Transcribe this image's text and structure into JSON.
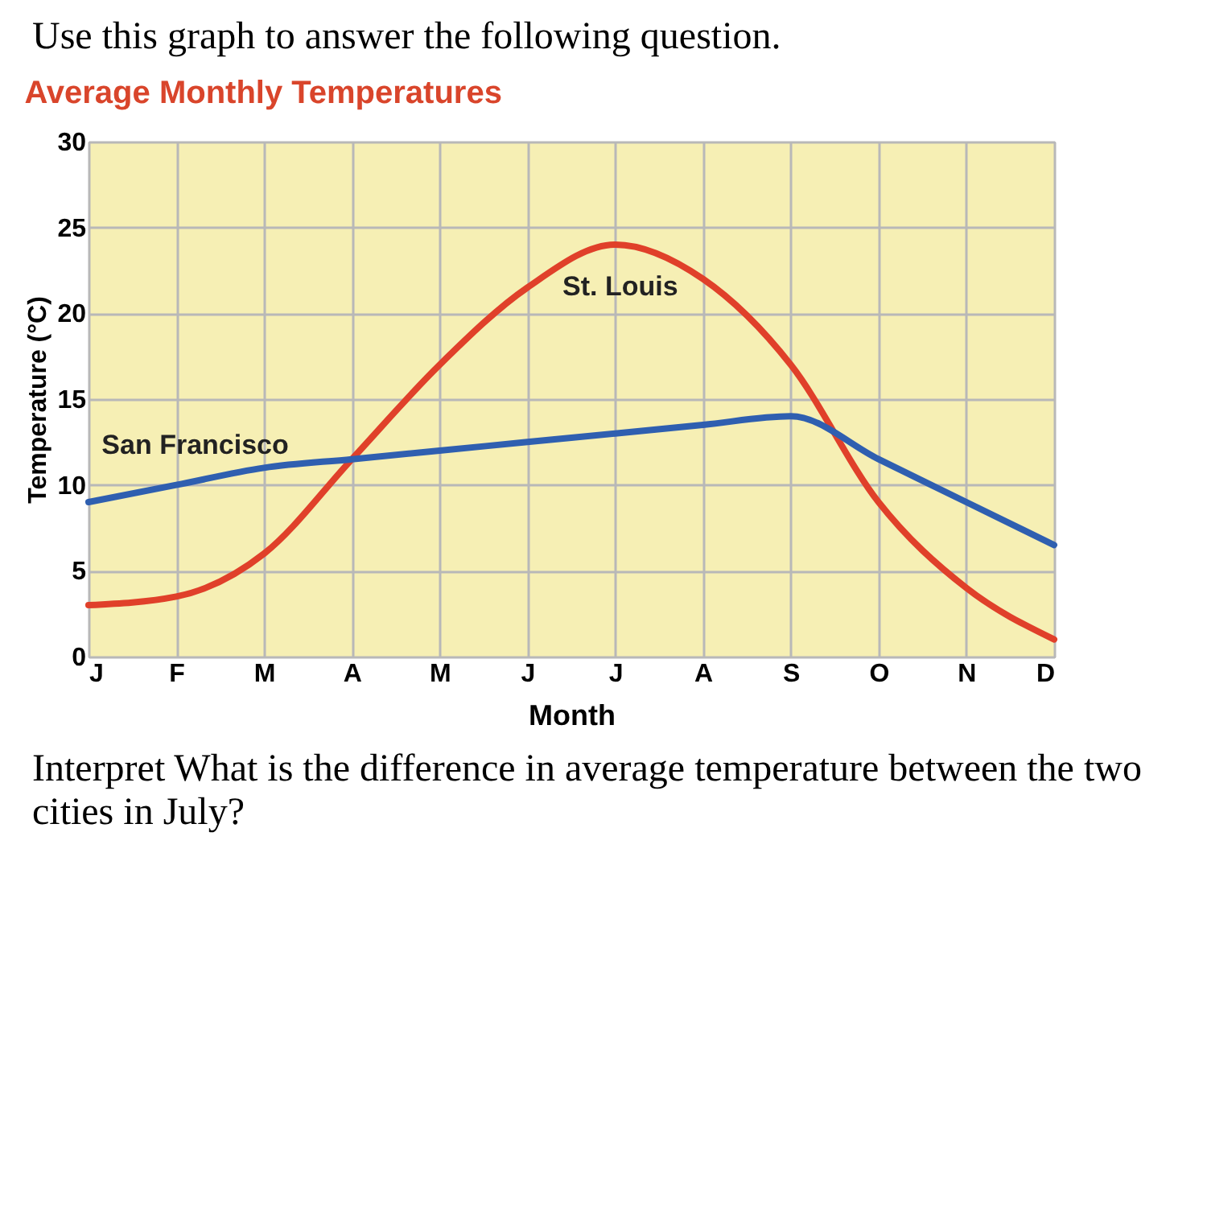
{
  "chart_data": {
    "type": "line",
    "title": "Average Monthly Temperatures",
    "xlabel": "Month",
    "ylabel": "Temperature (°C)",
    "categories": [
      "J",
      "F",
      "M",
      "A",
      "M",
      "J",
      "J",
      "A",
      "S",
      "O",
      "N",
      "D"
    ],
    "series": [
      {
        "name": "St. Louis",
        "color": "#e0402a",
        "values": [
          3,
          3.5,
          6,
          11.5,
          17,
          21.5,
          24,
          22,
          17,
          9,
          4,
          1
        ]
      },
      {
        "name": "San Francisco",
        "color": "#2f5fb0",
        "values": [
          9,
          10,
          11,
          11.5,
          12,
          12.5,
          13,
          13.5,
          14,
          11.5,
          9,
          6.5
        ]
      }
    ],
    "ylim": [
      0,
      30
    ],
    "yticks": [
      0,
      5,
      10,
      15,
      20,
      25,
      30
    ],
    "grid": true,
    "legend": false,
    "marker": "none",
    "line_style": "solid",
    "annotations": [
      "Use this graph to answer the following question.",
      "Interpret What is the difference in average temperature between the two cities in July?"
    ]
  }
}
